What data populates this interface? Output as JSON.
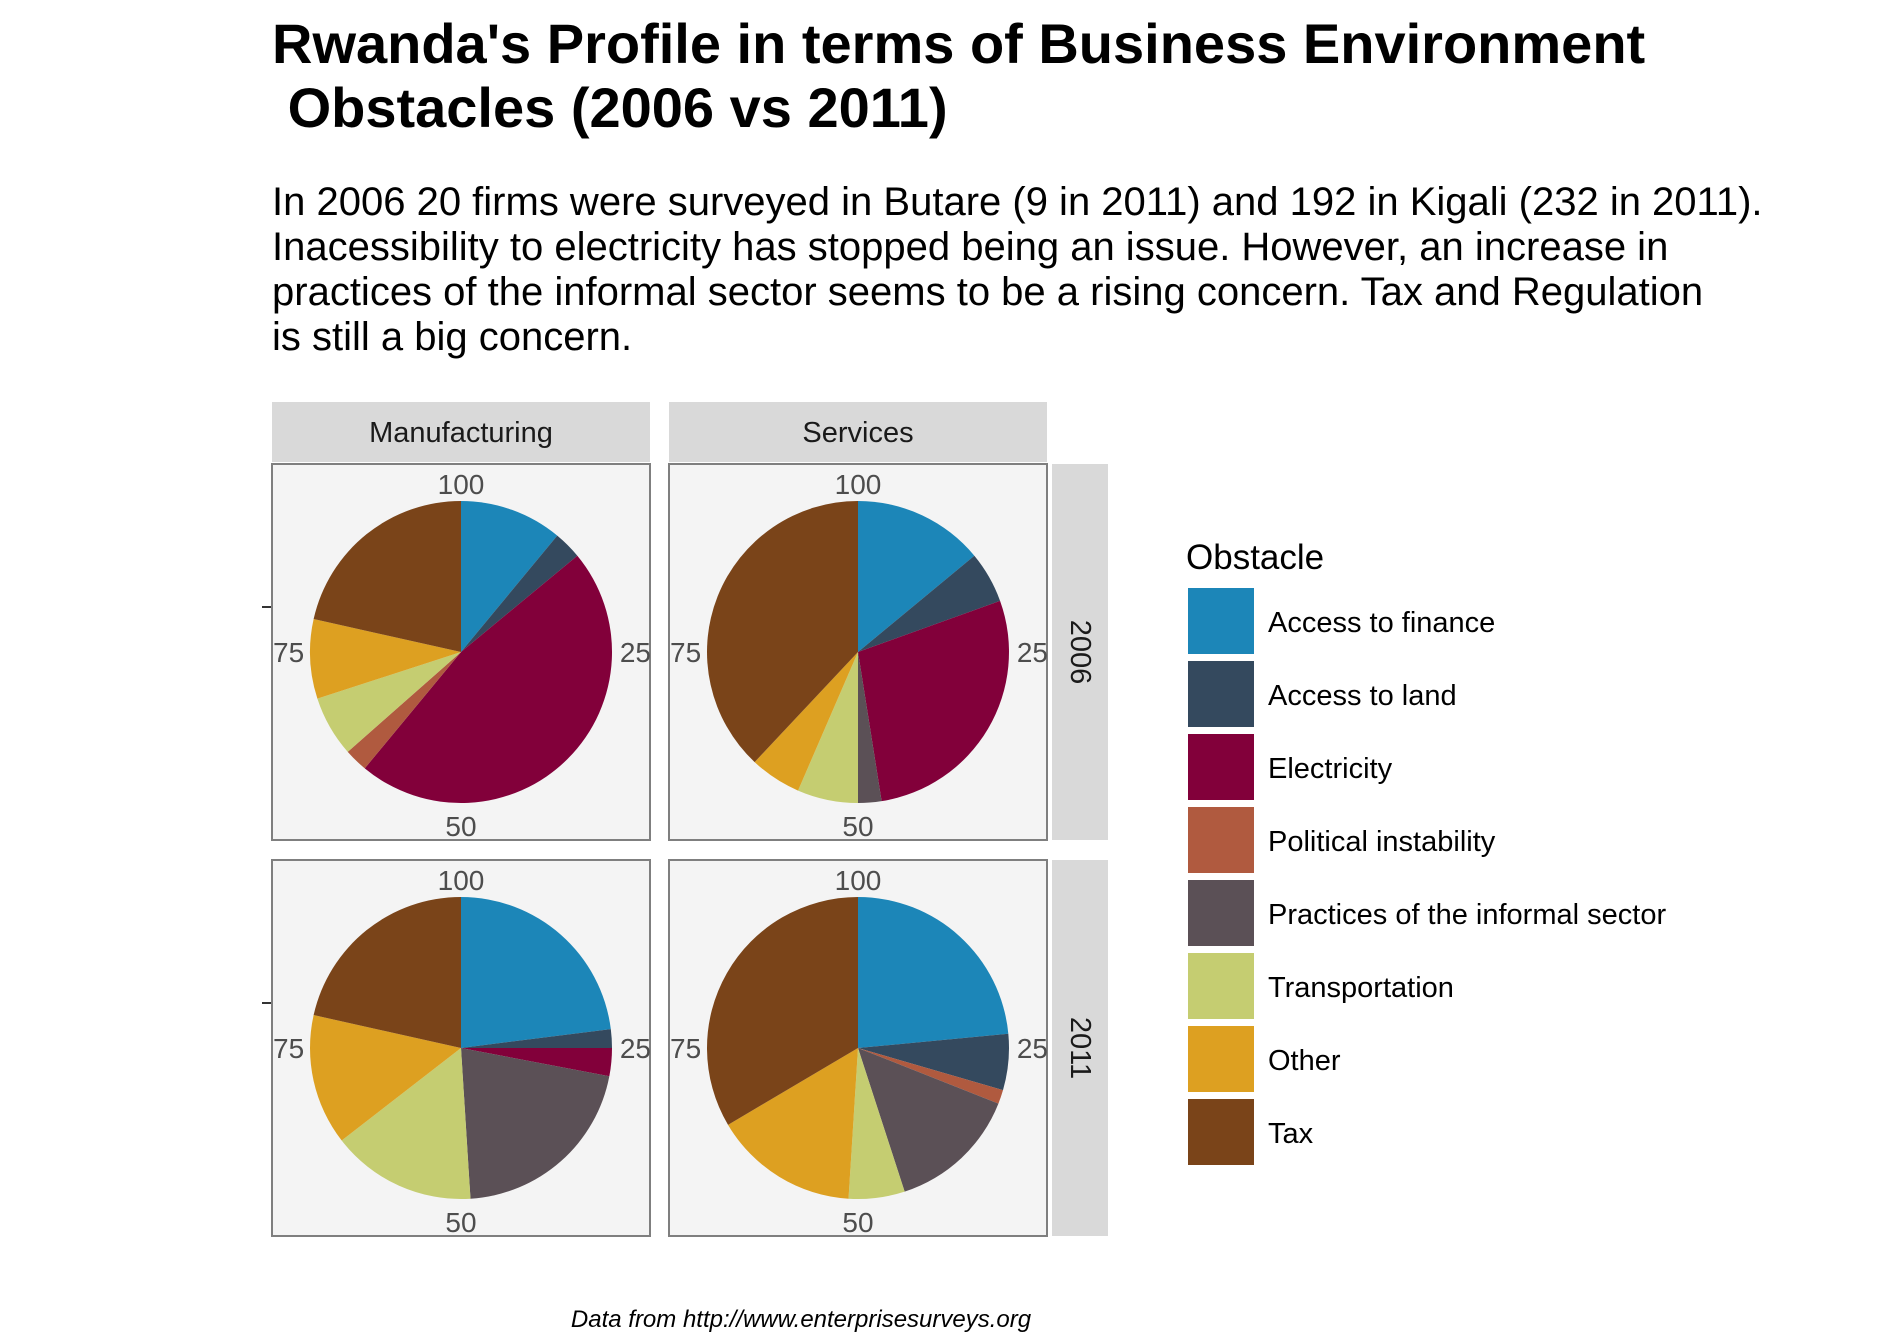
{
  "title": "Rwanda's Profile in terms of Business Environment\n Obstacles (2006 vs 2011)",
  "subtitle": "In 2006 20 firms were surveyed in Butare (9 in 2011) and 192 in Kigali (232 in 2011).\nInacessibility to electricity has stopped being an issue. However, an increase in\npractices of the informal sector seems to be a rising concern. Tax and Regulation\nis still a big concern.",
  "caption": "Data from http://www.enterprisesurveys.org",
  "chart_data": {
    "type": "pie",
    "facet_columns": [
      "Manufacturing",
      "Services"
    ],
    "facet_rows": [
      "2006",
      "2011"
    ],
    "theta_ticks": [
      "100",
      "25",
      "50",
      "75"
    ],
    "legend_title": "Obstacle",
    "legend_position": "right",
    "categories": [
      "Access to finance",
      "Access to land",
      "Electricity",
      "Political instability",
      "Practices of the informal sector",
      "Transportation",
      "Other",
      "Tax"
    ],
    "colors": [
      "#1c86b8",
      "#34495e",
      "#82003a",
      "#b05a3f",
      "#5b5056",
      "#c5cd71",
      "#dda021",
      "#7a4419"
    ],
    "panels": [
      {
        "column": "Manufacturing",
        "row": "2006",
        "values": [
          11,
          3,
          47,
          2.5,
          0,
          6.5,
          8.5,
          21.5
        ]
      },
      {
        "column": "Services",
        "row": "2006",
        "values": [
          14,
          5.5,
          28,
          0,
          2.5,
          6.5,
          5.5,
          38
        ]
      },
      {
        "column": "Manufacturing",
        "row": "2011",
        "values": [
          23,
          2,
          3,
          0,
          21,
          15.5,
          14,
          21.5
        ]
      },
      {
        "column": "Services",
        "row": "2011",
        "values": [
          23.5,
          6,
          0,
          1.5,
          14,
          6,
          15.5,
          33.5
        ]
      }
    ]
  }
}
